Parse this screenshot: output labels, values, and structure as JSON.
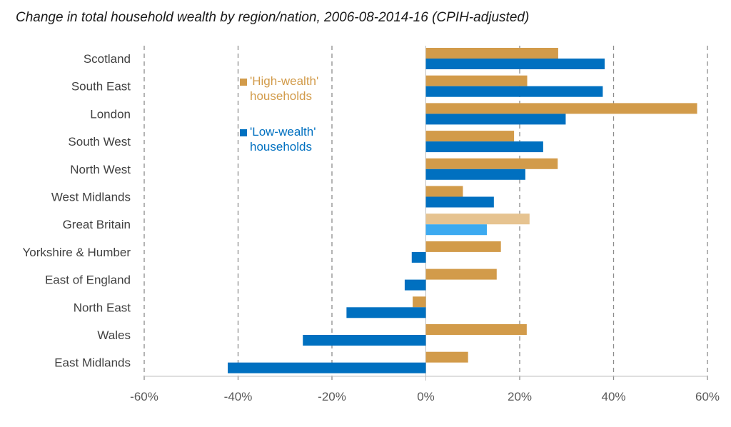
{
  "chart_data": {
    "type": "bar",
    "orientation": "horizontal",
    "title": "Change in total household wealth by region/nation, 2006-08-2014-16 (CPIH-adjusted)",
    "xlabel": "",
    "ylabel": "",
    "xlim": [
      -60,
      60
    ],
    "xticks": [
      -60,
      -40,
      -20,
      0,
      20,
      40,
      60
    ],
    "tick_suffix": "%",
    "grid": "vertical dashed",
    "legend_position": "upper-left inside plot",
    "categories": [
      "Scotland",
      "South East",
      "London",
      "South West",
      "North West",
      "West Midlands",
      "Great Britain",
      "Yorkshire & Humber",
      "East of England",
      "North East",
      "Wales",
      "East Midlands"
    ],
    "highlight_category": "Great Britain",
    "series": [
      {
        "name": "'High-wealth' households",
        "legend_lines": [
          "'High-wealth'",
          "households"
        ],
        "color": "#D29B4A",
        "highlight_color": "#E6C390",
        "values": [
          28.2,
          21.6,
          57.8,
          18.8,
          28.1,
          7.9,
          22.1,
          16.0,
          15.1,
          -2.8,
          21.5,
          9.0
        ]
      },
      {
        "name": "'Low-wealth' households",
        "legend_lines": [
          "'Low-wealth'",
          "households"
        ],
        "color": "#0070C0",
        "highlight_color": "#3CAAF0",
        "values": [
          38.1,
          37.7,
          29.8,
          25.0,
          21.2,
          14.5,
          13.0,
          -3.0,
          -4.5,
          -16.9,
          -26.2,
          -42.2
        ]
      }
    ]
  }
}
